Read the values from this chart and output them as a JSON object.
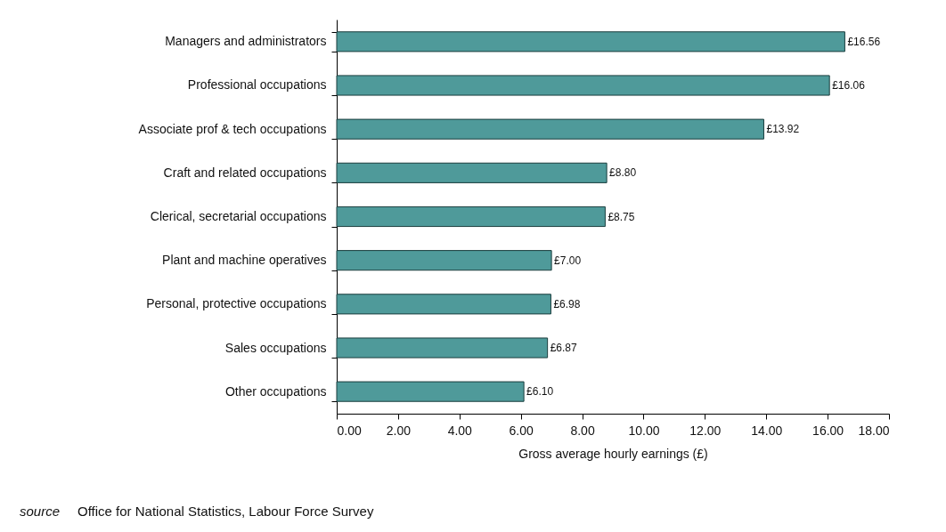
{
  "chart_data": {
    "type": "bar",
    "orientation": "horizontal",
    "xlabel": "Gross average hourly earnings (£)",
    "categories": [
      "Managers and administrators",
      "Professional occupations",
      "Associate prof & tech occupations",
      "Craft and related occupations",
      "Clerical, secretarial occupations",
      "Plant and machine operatives",
      "Personal, protective occupations",
      "Sales occupations",
      "Other occupations"
    ],
    "values": [
      16.56,
      16.06,
      13.92,
      8.8,
      8.75,
      7.0,
      6.98,
      6.87,
      6.1
    ],
    "value_labels": [
      "£16.56",
      "£16.06",
      "£13.92",
      "£8.80",
      "£8.75",
      "£7.00",
      "£6.98",
      "£6.87",
      "£6.10"
    ],
    "color": "#4f9a9a",
    "xlim": [
      0,
      18
    ],
    "xticks": [
      {
        "value": 0,
        "label": "0.00"
      },
      {
        "value": 2,
        "label": "2.00"
      },
      {
        "value": 4,
        "label": "4.00"
      },
      {
        "value": 6,
        "label": "6.00"
      },
      {
        "value": 8,
        "label": "8.00"
      },
      {
        "value": 10,
        "label": "10.00"
      },
      {
        "value": 12,
        "label": "12.00"
      },
      {
        "value": 14,
        "label": "14.00"
      },
      {
        "value": 16,
        "label": "16.00"
      },
      {
        "value": 18,
        "label": "18.00"
      }
    ],
    "grid": false,
    "annotations": [
      "source",
      "Office for National Statistics, Labour Force Survey"
    ]
  }
}
